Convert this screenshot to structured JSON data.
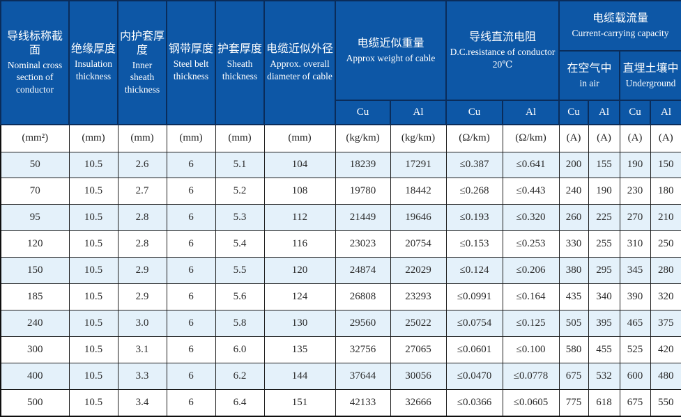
{
  "table": {
    "columns": [
      {
        "zh": "导线标称截面",
        "en": "Nominal cross section of conductor"
      },
      {
        "zh": "绝缘厚度",
        "en": "Insulation thickness"
      },
      {
        "zh": "内护套厚度",
        "en": "Inner sheath thickness"
      },
      {
        "zh": "钢带厚度",
        "en": "Steel belt thickness"
      },
      {
        "zh": "护套厚度",
        "en": "Sheath thickness"
      },
      {
        "zh": "电缆近似外径",
        "en": "Approx. overall diameter of cable"
      }
    ],
    "groups": {
      "weight": {
        "zh": "电缆近似重量",
        "en": "Approx weight of cable"
      },
      "dc_resistance": {
        "zh": "导线直流电阻",
        "en": "D.C.resistance of conductor",
        "temp": "20℃"
      },
      "capacity": {
        "zh": "电缆载流量",
        "en": "Current-carrying capacity",
        "sub": [
          {
            "zh": "在空气中",
            "en": "in air"
          },
          {
            "zh": "直埋土壤中",
            "en": "Underground"
          }
        ]
      }
    },
    "material_row": [
      "Cu",
      "Al",
      "Cu",
      "Al",
      "Cu",
      "Al",
      "Cu",
      "Al"
    ],
    "units": [
      "(mm²)",
      "(mm)",
      "(mm)",
      "(mm)",
      "(mm)",
      "(mm)",
      "(kg/km)",
      "(kg/km)",
      "(Ω/km)",
      "(Ω/km)",
      "(A)",
      "(A)",
      "(A)",
      "(A)"
    ],
    "rows": [
      [
        "50",
        "10.5",
        "2.6",
        "6",
        "5.1",
        "104",
        "18239",
        "17291",
        "≤0.387",
        "≤0.641",
        "200",
        "155",
        "190",
        "150"
      ],
      [
        "70",
        "10.5",
        "2.7",
        "6",
        "5.2",
        "108",
        "19780",
        "18442",
        "≤0.268",
        "≤0.443",
        "240",
        "190",
        "230",
        "180"
      ],
      [
        "95",
        "10.5",
        "2.8",
        "6",
        "5.3",
        "112",
        "21449",
        "19646",
        "≤0.193",
        "≤0.320",
        "260",
        "225",
        "270",
        "210"
      ],
      [
        "120",
        "10.5",
        "2.8",
        "6",
        "5.4",
        "116",
        "23023",
        "20754",
        "≤0.153",
        "≤0.253",
        "330",
        "255",
        "310",
        "250"
      ],
      [
        "150",
        "10.5",
        "2.9",
        "6",
        "5.5",
        "120",
        "24874",
        "22029",
        "≤0.124",
        "≤0.206",
        "380",
        "295",
        "345",
        "280"
      ],
      [
        "185",
        "10.5",
        "2.9",
        "6",
        "5.6",
        "124",
        "26808",
        "23293",
        "≤0.0991",
        "≤0.164",
        "435",
        "340",
        "390",
        "320"
      ],
      [
        "240",
        "10.5",
        "3.0",
        "6",
        "5.8",
        "130",
        "29560",
        "25022",
        "≤0.0754",
        "≤0.125",
        "505",
        "395",
        "465",
        "375"
      ],
      [
        "300",
        "10.5",
        "3.1",
        "6",
        "6.0",
        "135",
        "32756",
        "27065",
        "≤0.0601",
        "≤0.100",
        "580",
        "455",
        "525",
        "420"
      ],
      [
        "400",
        "10.5",
        "3.3",
        "6",
        "6.2",
        "144",
        "37644",
        "30056",
        "≤0.0470",
        "≤0.0778",
        "675",
        "532",
        "600",
        "480"
      ],
      [
        "500",
        "10.5",
        "3.4",
        "6",
        "6.4",
        "151",
        "42133",
        "32666",
        "≤0.0366",
        "≤0.0605",
        "775",
        "618",
        "675",
        "550"
      ]
    ]
  },
  "colors": {
    "header_bg": "#0d57a6",
    "header_border": "#0a2c5a",
    "header_text": "#ffffff",
    "alt_row_bg": "#e4f1fa",
    "body_text": "#2b2b2b"
  }
}
